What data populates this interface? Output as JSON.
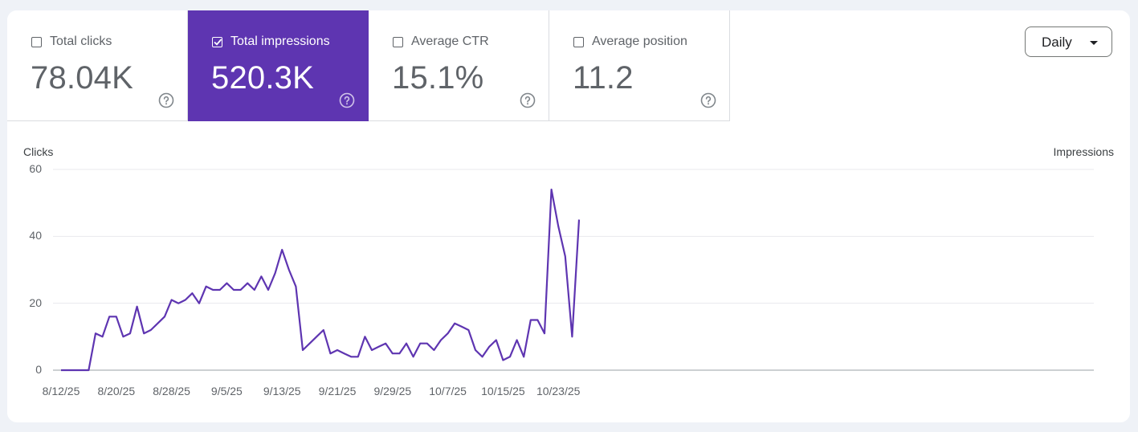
{
  "metrics": [
    {
      "label": "Total clicks",
      "value": "78.04K",
      "checked": false
    },
    {
      "label": "Total impressions",
      "value": "520.3K",
      "checked": true
    },
    {
      "label": "Average CTR",
      "value": "15.1%",
      "checked": false
    },
    {
      "label": "Average position",
      "value": "11.2",
      "checked": false
    }
  ],
  "dropdown": {
    "label": "Daily"
  },
  "colors": {
    "accent": "#5e35b1",
    "line": "#5e35b1",
    "grid": "#e8eaed"
  },
  "chart_data": {
    "type": "line",
    "ylabel_left": "Clicks",
    "ylabel_right": "Impressions",
    "ylim": [
      0,
      60
    ],
    "yticks": [
      "60",
      "40",
      "20",
      "0"
    ],
    "xticks": [
      "8/12/25",
      "8/20/25",
      "8/28/25",
      "9/5/25",
      "9/13/25",
      "9/21/25",
      "9/29/25",
      "10/7/25",
      "10/15/25",
      "10/23/25"
    ],
    "start_label": "8/12/25",
    "series": [
      {
        "values": [
          0,
          0,
          0,
          0,
          0,
          11,
          10,
          16,
          16,
          10,
          11,
          19,
          11,
          12,
          14,
          16,
          21,
          20,
          21,
          23,
          20,
          25,
          24,
          24,
          26,
          24,
          24,
          26,
          24,
          28,
          24,
          29,
          36,
          30,
          25,
          6,
          8,
          10,
          12,
          5,
          6,
          5,
          4,
          4,
          10,
          6,
          7,
          8,
          5,
          5,
          8,
          4,
          8,
          8,
          6,
          9,
          11,
          14,
          13,
          12,
          6,
          4,
          7,
          9,
          3,
          4,
          9,
          4,
          15,
          15,
          11,
          54,
          43,
          34,
          10,
          45
        ]
      }
    ]
  }
}
